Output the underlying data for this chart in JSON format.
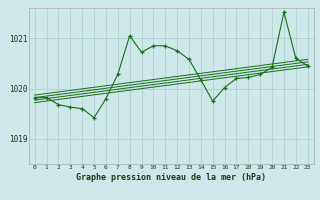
{
  "title": "Graphe pression niveau de la mer (hPa)",
  "bg_color": "#cce8e8",
  "grid_color": "#aacccc",
  "line_color": "#1a6e1a",
  "xlim": [
    -0.5,
    23.5
  ],
  "ylim": [
    1018.5,
    1021.6
  ],
  "yticks": [
    1019,
    1020,
    1021
  ],
  "xtick_labels": [
    "0",
    "1",
    "2",
    "3",
    "4",
    "5",
    "6",
    "7",
    "8",
    "9",
    "10",
    "11",
    "12",
    "13",
    "14",
    "15",
    "16",
    "17",
    "18",
    "19",
    "20",
    "21",
    "22",
    "23"
  ],
  "main_series": [
    [
      0,
      1019.82
    ],
    [
      1,
      1019.82
    ],
    [
      2,
      1019.68
    ],
    [
      3,
      1019.63
    ],
    [
      4,
      1019.6
    ],
    [
      5,
      1019.42
    ],
    [
      6,
      1019.8
    ],
    [
      7,
      1020.28
    ],
    [
      8,
      1021.05
    ],
    [
      9,
      1020.72
    ],
    [
      10,
      1020.85
    ],
    [
      11,
      1020.85
    ],
    [
      12,
      1020.75
    ],
    [
      13,
      1020.58
    ],
    [
      14,
      1020.17
    ],
    [
      15,
      1019.75
    ],
    [
      16,
      1020.02
    ],
    [
      17,
      1020.2
    ],
    [
      18,
      1020.22
    ],
    [
      19,
      1020.28
    ],
    [
      20,
      1020.42
    ],
    [
      21,
      1021.52
    ],
    [
      22,
      1020.6
    ],
    [
      23,
      1020.45
    ]
  ],
  "trend_lines": [
    [
      [
        0,
        1019.72
      ],
      [
        23,
        1020.43
      ]
    ],
    [
      [
        0,
        1019.77
      ],
      [
        23,
        1020.48
      ]
    ],
    [
      [
        0,
        1019.82
      ],
      [
        23,
        1020.53
      ]
    ],
    [
      [
        0,
        1019.87
      ],
      [
        23,
        1020.58
      ]
    ]
  ]
}
